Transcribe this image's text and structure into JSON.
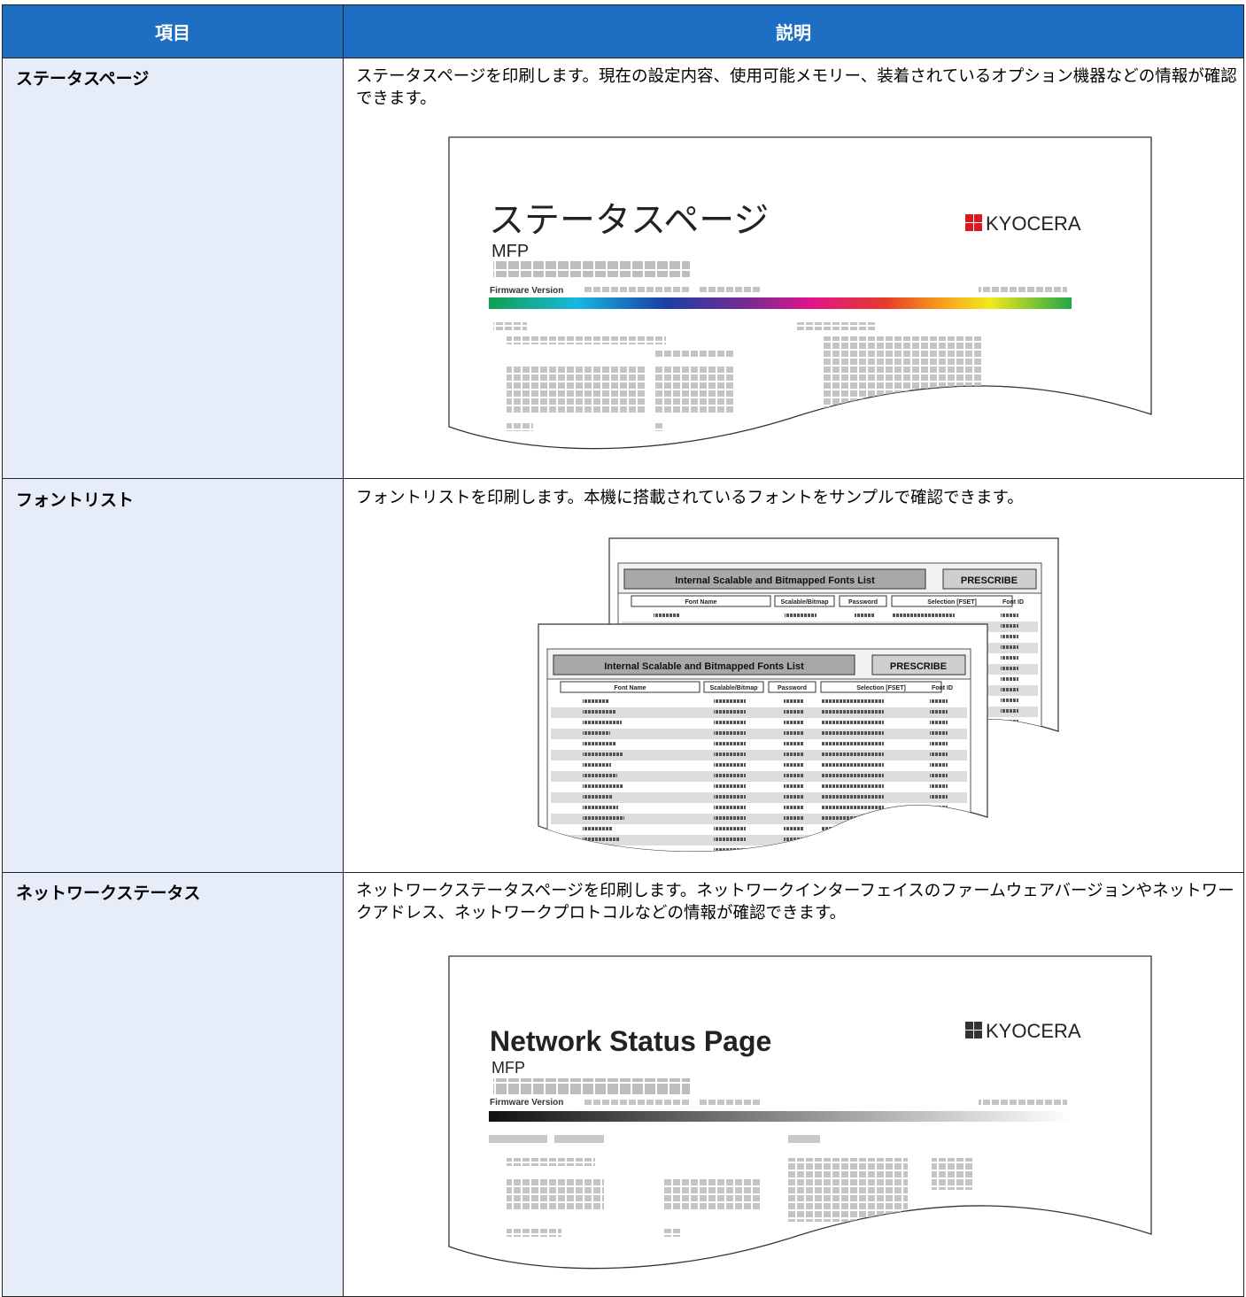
{
  "table": {
    "header": [
      "項目",
      "説明"
    ],
    "rows": [
      {
        "item": "ステータスページ",
        "description": "ステータスページを印刷します。現在の設定内容、使用可能メモリー、装着されているオプション機器などの情報が確認できます。",
        "sample": {
          "title": "ステータスページ",
          "subtitle": "MFP",
          "firmware": "Firmware Version",
          "logo": "KYOCERA"
        }
      },
      {
        "item": "フォントリスト",
        "description": "フォントリストを印刷します。本機に搭載されているフォントをサンプルで確認できます。",
        "sample": {
          "title": "Internal Scalable and Bitmapped Fonts List",
          "badge": "PRESCRIBE",
          "columns": [
            "Font Name",
            "Scalable/Bitmap",
            "Password",
            "Selection [FSET]",
            "Font ID"
          ]
        }
      },
      {
        "item": "ネットワークステータス",
        "description": "ネットワークステータスページを印刷します。ネットワークインターフェイスのファームウェアバージョンやネットワークアドレス、ネットワークプロトコルなどの情報が確認できます。",
        "sample": {
          "title": "Network Status Page",
          "subtitle": "MFP",
          "firmware": "Firmware Version",
          "logo": "KYOCERA"
        }
      }
    ]
  }
}
